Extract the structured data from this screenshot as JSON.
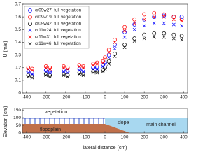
{
  "chart_data": [
    {
      "type": "scatter",
      "ylabel": "U (m/s)",
      "x": [
        -390,
        -370,
        -300,
        -280,
        -210,
        -190,
        -130,
        -110,
        -60,
        -40,
        -10,
        0,
        20,
        50,
        100,
        150,
        200,
        250,
        300,
        350,
        390
      ],
      "series": [
        {
          "name": "cr09w27; full vegetation",
          "color": "#0000ff",
          "marker": "o",
          "values": [
            0.17,
            0.16,
            0.18,
            0.17,
            0.18,
            0.17,
            0.19,
            0.18,
            0.2,
            0.2,
            0.22,
            0.24,
            0.3,
            0.38,
            0.48,
            0.54,
            0.58,
            0.6,
            0.61,
            0.6,
            0.6
          ]
        },
        {
          "name": "cr09w19; full vegetation",
          "color": "#ff0000",
          "marker": "o",
          "values": [
            0.2,
            0.19,
            0.21,
            0.2,
            0.21,
            0.2,
            0.22,
            0.21,
            0.23,
            0.24,
            0.25,
            0.28,
            0.34,
            0.42,
            0.52,
            0.58,
            0.62,
            0.63,
            0.62,
            0.6,
            0.58
          ]
        },
        {
          "name": "cr09w42; full vegetation",
          "color": "#000000",
          "marker": "o",
          "values": [
            0.14,
            0.13,
            0.15,
            0.14,
            0.15,
            0.14,
            0.16,
            0.15,
            0.17,
            0.17,
            0.18,
            0.2,
            0.25,
            0.31,
            0.38,
            0.43,
            0.46,
            0.47,
            0.47,
            0.46,
            0.45
          ]
        },
        {
          "name": "cr11w24; full vegetation",
          "color": "#0000ff",
          "marker": "x",
          "values": [
            0.16,
            0.15,
            0.17,
            0.16,
            0.17,
            0.16,
            0.18,
            0.17,
            0.19,
            0.19,
            0.21,
            0.23,
            0.28,
            0.35,
            0.44,
            0.5,
            0.53,
            0.55,
            0.55,
            0.54,
            0.53
          ]
        },
        {
          "name": "cr11w31; full vegetation",
          "color": "#ff0000",
          "marker": "x",
          "values": [
            0.19,
            0.18,
            0.2,
            0.19,
            0.2,
            0.19,
            0.21,
            0.2,
            0.22,
            0.23,
            0.24,
            0.27,
            0.32,
            0.4,
            0.49,
            0.55,
            0.58,
            0.6,
            0.6,
            0.58,
            0.57
          ]
        },
        {
          "name": "cr11w46; full vegetation",
          "color": "#000000",
          "marker": "x",
          "values": [
            0.13,
            0.12,
            0.14,
            0.13,
            0.14,
            0.13,
            0.15,
            0.14,
            0.16,
            0.16,
            0.17,
            0.19,
            0.23,
            0.29,
            0.36,
            0.41,
            0.43,
            0.44,
            0.44,
            0.43,
            0.42
          ]
        }
      ],
      "xlim": [
        -420,
        420
      ],
      "xticks": [
        -400,
        -300,
        -200,
        -100,
        0,
        100,
        200,
        300,
        400
      ],
      "ylim": [
        0,
        0.7
      ],
      "yticks": [
        0,
        0.1,
        0.2,
        0.3,
        0.4,
        0.5,
        0.6,
        0.7
      ],
      "legend": "upper-left",
      "grid": false
    },
    {
      "type": "profile",
      "xlabel": "lateral distance (cm)",
      "ylabel": "Elevation (cm)",
      "xlim": [
        -420,
        420
      ],
      "xticks": [
        -400,
        -300,
        -200,
        -100,
        0,
        100,
        200,
        300,
        400
      ],
      "ylim": [
        0,
        160
      ],
      "yticks": [
        0,
        50,
        100,
        150
      ],
      "annotations": [
        "vegetation",
        "floodplain",
        "slope",
        "main channel"
      ]
    }
  ]
}
